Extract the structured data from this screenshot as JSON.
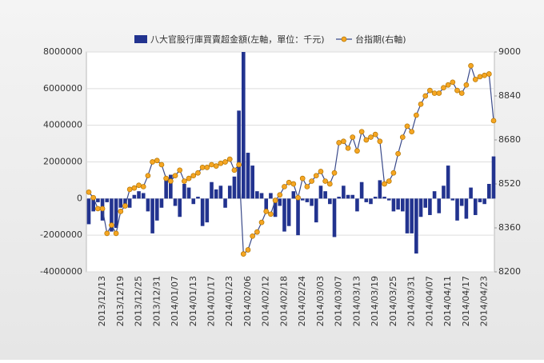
{
  "chart_data": {
    "type": "bar-line",
    "categories": [
      null,
      null,
      null,
      "2013/12/13",
      null,
      null,
      null,
      "2013/12/19",
      null,
      null,
      null,
      "2013/12/25",
      null,
      null,
      null,
      "2013/12/31",
      null,
      null,
      null,
      "2014/01/07",
      null,
      null,
      null,
      "2014/01/13",
      null,
      null,
      null,
      "2014/01/17",
      null,
      null,
      null,
      "2014/01/23",
      null,
      null,
      null,
      "2014/02/06",
      null,
      null,
      null,
      "2014/02/12",
      null,
      null,
      null,
      "2014/02/18",
      null,
      null,
      null,
      "2014/02/24",
      null,
      null,
      null,
      "2014/03/03",
      null,
      null,
      null,
      "2014/03/07",
      null,
      null,
      null,
      "2014/03/13",
      null,
      null,
      null,
      "2014/03/19",
      null,
      null,
      null,
      "2014/03/25",
      null,
      null,
      null,
      "2014/03/31",
      null,
      null,
      null,
      "2014/04/07",
      null,
      null,
      null,
      "2014/04/11",
      null,
      null,
      null,
      "2014/04/17",
      null,
      null,
      null,
      "2014/04/23",
      null,
      null
    ],
    "series": [
      {
        "name": "八大官股行庫買賣超金額(左軸，單位：千元)",
        "color": "#22338f",
        "axis": "y",
        "values": [
          -1400000,
          -700000,
          -200000,
          -1200000,
          -200000,
          -1800000,
          -1600000,
          -500000,
          -300000,
          -500000,
          200000,
          400000,
          300000,
          -700000,
          -1900000,
          -1200000,
          -500000,
          1000000,
          1300000,
          -400000,
          -1000000,
          800000,
          600000,
          -300000,
          100000,
          -1500000,
          -1300000,
          900000,
          500000,
          700000,
          -500000,
          700000,
          1200000,
          4800000,
          8000000,
          2500000,
          1800000,
          400000,
          300000,
          -600000,
          300000,
          -1000000,
          -400000,
          -1800000,
          -1500000,
          400000,
          -2000000,
          -100000,
          -200000,
          -400000,
          -1300000,
          700000,
          400000,
          -300000,
          -2100000,
          100000,
          700000,
          200000,
          200000,
          -700000,
          900000,
          -200000,
          -300000,
          100000,
          1000000,
          100000,
          -100000,
          -700000,
          -600000,
          -700000,
          -1900000,
          -1900000,
          -3000000,
          -1000000,
          -500000,
          -900000,
          400000,
          -800000,
          700000,
          1800000,
          -100000,
          -1200000,
          -400000,
          -1100000,
          600000,
          -900000,
          -200000,
          -300000,
          800000,
          2300000
        ]
      },
      {
        "name": "台指期(右軸)",
        "color": "#f5a623",
        "axis": "y2",
        "values": [
          8490,
          8470,
          8430,
          8430,
          8340,
          8370,
          8340,
          8420,
          8440,
          8500,
          8505,
          8515,
          8510,
          8550,
          8600,
          8605,
          8590,
          8540,
          8530,
          8550,
          8570,
          8530,
          8540,
          8550,
          8560,
          8580,
          8580,
          8590,
          8585,
          8595,
          8600,
          8610,
          8570,
          8590,
          8265,
          8280,
          8330,
          8345,
          8380,
          8420,
          8410,
          8460,
          8480,
          8510,
          8525,
          8520,
          8470,
          8540,
          8510,
          8530,
          8550,
          8565,
          8530,
          8520,
          8560,
          8670,
          8675,
          8650,
          8690,
          8640,
          8710,
          8680,
          8690,
          8700,
          8675,
          8520,
          8530,
          8560,
          8630,
          8690,
          8730,
          8710,
          8770,
          8810,
          8840,
          8860,
          8850,
          8850,
          8870,
          8880,
          8890,
          8860,
          8850,
          8880,
          8950,
          8900,
          8910,
          8915,
          8920,
          8750
        ]
      }
    ],
    "ylim": [
      -4000000,
      8000000
    ],
    "yticks": [
      -4000000,
      -2000000,
      0,
      2000000,
      4000000,
      6000000,
      8000000
    ],
    "y2lim": [
      8200,
      9000
    ],
    "y2ticks": [
      8200,
      8360,
      8520,
      8680,
      8840,
      9000
    ],
    "grid": true
  }
}
